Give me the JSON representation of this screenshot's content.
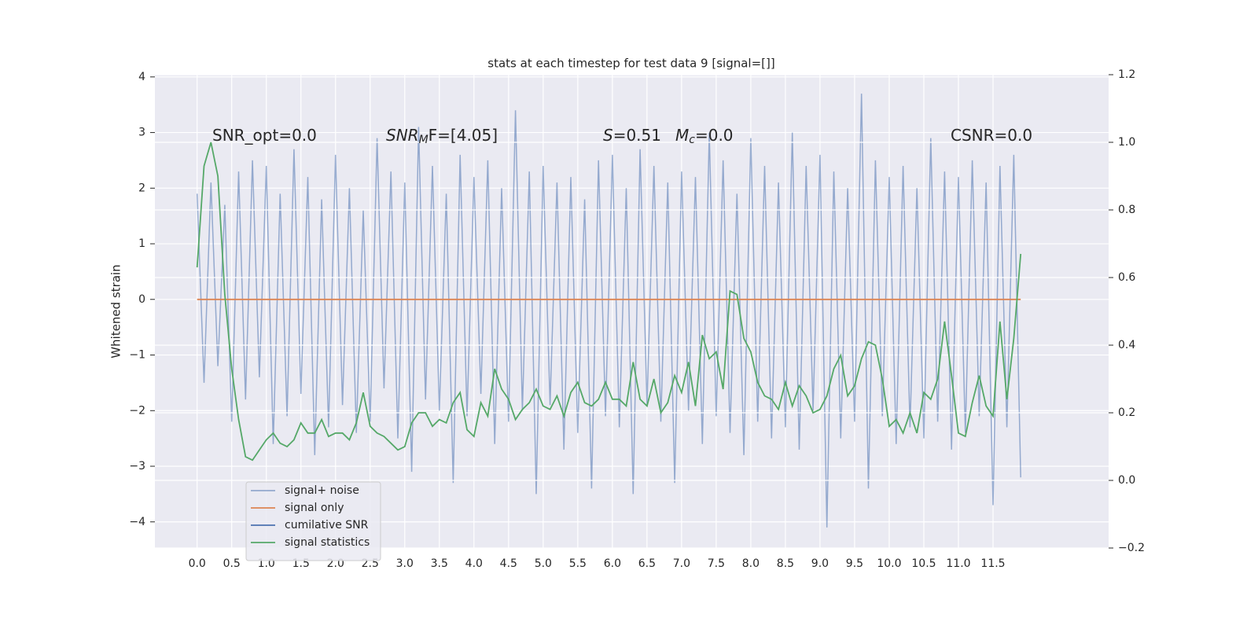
{
  "chart_data": {
    "type": "line",
    "title": "stats at each timestep for test data 9 [signal=[]]",
    "ylabel": "Whitened strain",
    "xlim": [
      -0.61,
      13.17
    ],
    "ylim": [
      -4.47,
      4.04
    ],
    "y2lim": [
      -0.2,
      1.2
    ],
    "grid": true,
    "legend": "lower left",
    "xticks": [
      {
        "value": 0,
        "label": "0.0"
      },
      0.5,
      {
        "value": 1,
        "label": "1.0"
      },
      1.5,
      {
        "value": 2,
        "label": "2.0"
      },
      2.5,
      {
        "value": 3,
        "label": "3.0"
      },
      3.5,
      {
        "value": 4,
        "label": "4.0"
      },
      4.5,
      {
        "value": 5,
        "label": "5.0"
      },
      5.5,
      {
        "value": 6,
        "label": "6.0"
      },
      6.5,
      {
        "value": 7,
        "label": "7.0"
      },
      7.5,
      {
        "value": 8,
        "label": "8.0"
      },
      8.5,
      {
        "value": 9,
        "label": "9.0"
      },
      9.5,
      {
        "value": 10,
        "label": "10.0"
      },
      10.5,
      {
        "value": 11,
        "label": "11.0"
      },
      11.5
    ],
    "yticks": [
      {
        "value": -4,
        "label": "−4"
      },
      {
        "value": -3,
        "label": "−3"
      },
      {
        "value": -2,
        "label": "−2"
      },
      {
        "value": -1,
        "label": "−1"
      },
      0,
      1,
      2,
      3,
      4
    ],
    "y2ticks": [
      {
        "value": -0.2,
        "label": "−0.2"
      },
      {
        "value": 0,
        "label": "0.0"
      },
      0.2,
      0.4,
      0.6,
      0.8,
      {
        "value": 1,
        "label": "1.0"
      },
      1.2
    ],
    "annotations": [
      [
        "SNR_opt=0.0"
      ],
      [
        "SNR",
        "M",
        "F=[4.05]"
      ],
      [
        "S",
        "=0.51"
      ],
      [
        "M",
        "c",
        "=0.0"
      ],
      [
        "CSNR=0.0"
      ]
    ],
    "series": [
      {
        "name": "signal+ noise",
        "color": "#4c72b0",
        "x": [
          0,
          0.1,
          0.2,
          0.3,
          0.4,
          0.5,
          0.6,
          0.7,
          0.8,
          0.9,
          1,
          1.1,
          1.2,
          1.3,
          1.4,
          1.5,
          1.6,
          1.7,
          1.8,
          1.9,
          2,
          2.1,
          2.2,
          2.3,
          2.4,
          2.5,
          2.6,
          2.7,
          2.8,
          2.9,
          3,
          3.1,
          3.2,
          3.3,
          3.4,
          3.5,
          3.6,
          3.7,
          3.8,
          3.9,
          4,
          4.1,
          4.2,
          4.3,
          4.4,
          4.5,
          4.6,
          4.7,
          4.8,
          4.9,
          5,
          5.1,
          5.2,
          5.3,
          5.4,
          5.5,
          5.6,
          5.7,
          5.8,
          5.9,
          6,
          6.1,
          6.2,
          6.3,
          6.4,
          6.5,
          6.6,
          6.7,
          6.8,
          6.9,
          7,
          7.1,
          7.2,
          7.3,
          7.4,
          7.5,
          7.6,
          7.7,
          7.8,
          7.9,
          8,
          8.1,
          8.2,
          8.3,
          8.4,
          8.5,
          8.6,
          8.7,
          8.8,
          8.9,
          9,
          9.1,
          9.2,
          9.3,
          9.4,
          9.5,
          9.6,
          9.7,
          9.8,
          9.9,
          10,
          10.1,
          10.2,
          10.3,
          10.4,
          10.5,
          10.6,
          10.7,
          10.8,
          10.9,
          11,
          11.1,
          11.2,
          11.3,
          11.4,
          11.5,
          11.6,
          11.7,
          11.8,
          11.9
        ],
        "values": [
          1.9,
          -1.5,
          2.1,
          -1.2,
          1.7,
          -2.2,
          2.3,
          -1.8,
          2.5,
          -1.4,
          2.4,
          -2.6,
          1.9,
          -2.1,
          2.7,
          -1.7,
          2.2,
          -2.8,
          1.8,
          -2.3,
          2.6,
          -1.9,
          2.0,
          -2.4,
          1.6,
          -2.2,
          2.9,
          -1.6,
          2.3,
          -2.5,
          2.1,
          -3.1,
          3.1,
          -1.8,
          2.4,
          -2.0,
          1.9,
          -3.3,
          2.6,
          -2.1,
          2.2,
          -1.7,
          2.5,
          -2.6,
          2.0,
          -2.2,
          3.4,
          -2.0,
          2.3,
          -3.5,
          2.4,
          -1.9,
          2.1,
          -2.7,
          2.2,
          -2.4,
          1.8,
          -3.4,
          2.5,
          -2.1,
          2.6,
          -2.3,
          2.0,
          -3.5,
          2.7,
          -1.9,
          2.4,
          -2.2,
          2.1,
          -3.3,
          2.3,
          -2.0,
          2.2,
          -2.6,
          3.0,
          -2.1,
          2.5,
          -2.4,
          1.9,
          -2.8,
          2.9,
          -2.2,
          2.4,
          -2.5,
          2.1,
          -2.3,
          3.0,
          -2.7,
          2.4,
          -2.0,
          2.6,
          -4.1,
          2.3,
          -2.5,
          2.0,
          -2.2,
          3.7,
          -3.4,
          2.5,
          -2.1,
          2.2,
          -2.6,
          2.4,
          -2.3,
          2.0,
          -2.5,
          2.9,
          -2.2,
          2.3,
          -2.7,
          2.2,
          -2.4,
          2.5,
          -2.1,
          2.1,
          -3.7,
          2.4,
          -2.3,
          2.6,
          -3.2
        ]
      },
      {
        "name": "signal only",
        "color": "#dd8452",
        "x": [
          0,
          11.9
        ],
        "values": [
          0,
          0
        ]
      },
      {
        "name": "cumilative SNR",
        "color": "#4c72b0",
        "x": [],
        "values": []
      },
      {
        "name": "signal statistics",
        "color": "#55a868",
        "axis": "y2",
        "x": [
          0,
          0.1,
          0.2,
          0.3,
          0.4,
          0.5,
          0.6,
          0.7,
          0.8,
          0.9,
          1,
          1.1,
          1.2,
          1.3,
          1.4,
          1.5,
          1.6,
          1.7,
          1.8,
          1.9,
          2,
          2.1,
          2.2,
          2.3,
          2.4,
          2.5,
          2.6,
          2.7,
          2.8,
          2.9,
          3,
          3.1,
          3.2,
          3.3,
          3.4,
          3.5,
          3.6,
          3.7,
          3.8,
          3.9,
          4,
          4.1,
          4.2,
          4.3,
          4.4,
          4.5,
          4.6,
          4.7,
          4.8,
          4.9,
          5,
          5.1,
          5.2,
          5.3,
          5.4,
          5.5,
          5.6,
          5.7,
          5.8,
          5.9,
          6,
          6.1,
          6.2,
          6.3,
          6.4,
          6.5,
          6.6,
          6.7,
          6.8,
          6.9,
          7,
          7.1,
          7.2,
          7.3,
          7.4,
          7.5,
          7.6,
          7.7,
          7.8,
          7.9,
          8,
          8.1,
          8.2,
          8.3,
          8.4,
          8.5,
          8.6,
          8.7,
          8.8,
          8.9,
          9,
          9.1,
          9.2,
          9.3,
          9.4,
          9.5,
          9.6,
          9.7,
          9.8,
          9.9,
          10,
          10.1,
          10.2,
          10.3,
          10.4,
          10.5,
          10.6,
          10.7,
          10.8,
          10.9,
          11,
          11.1,
          11.2,
          11.3,
          11.4,
          11.5,
          11.6,
          11.7,
          11.8,
          11.9
        ],
        "values": [
          0.63,
          0.93,
          1.0,
          0.9,
          0.55,
          0.33,
          0.18,
          0.07,
          0.06,
          0.09,
          0.12,
          0.14,
          0.11,
          0.1,
          0.12,
          0.17,
          0.14,
          0.14,
          0.18,
          0.13,
          0.14,
          0.14,
          0.12,
          0.17,
          0.26,
          0.16,
          0.14,
          0.13,
          0.11,
          0.09,
          0.1,
          0.17,
          0.2,
          0.2,
          0.16,
          0.18,
          0.17,
          0.23,
          0.26,
          0.15,
          0.13,
          0.23,
          0.19,
          0.33,
          0.27,
          0.24,
          0.18,
          0.21,
          0.23,
          0.27,
          0.22,
          0.21,
          0.25,
          0.19,
          0.26,
          0.29,
          0.23,
          0.22,
          0.24,
          0.29,
          0.24,
          0.24,
          0.22,
          0.35,
          0.24,
          0.22,
          0.3,
          0.2,
          0.23,
          0.31,
          0.26,
          0.35,
          0.22,
          0.43,
          0.36,
          0.38,
          0.27,
          0.56,
          0.55,
          0.42,
          0.38,
          0.29,
          0.25,
          0.24,
          0.21,
          0.29,
          0.22,
          0.28,
          0.25,
          0.2,
          0.21,
          0.25,
          0.33,
          0.37,
          0.25,
          0.28,
          0.36,
          0.41,
          0.4,
          0.3,
          0.16,
          0.18,
          0.14,
          0.2,
          0.14,
          0.26,
          0.24,
          0.3,
          0.47,
          0.31,
          0.14,
          0.13,
          0.23,
          0.31,
          0.22,
          0.19,
          0.47,
          0.24,
          0.42,
          0.67
        ]
      }
    ]
  }
}
